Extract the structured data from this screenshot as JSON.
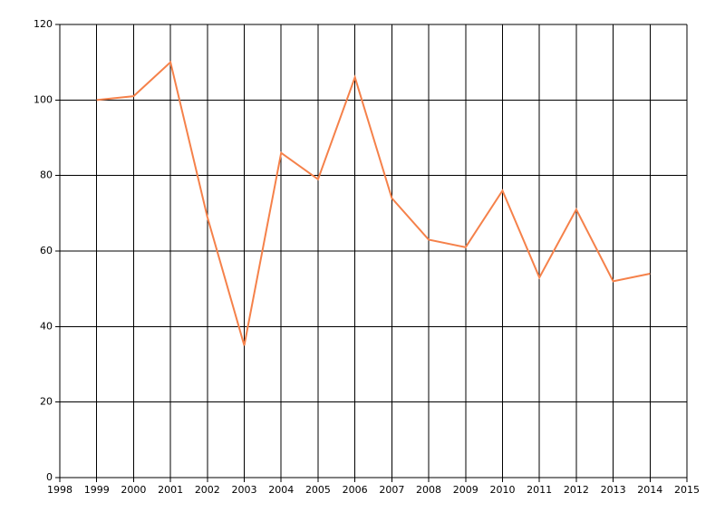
{
  "chart_data": {
    "type": "line",
    "x": [
      1999,
      2000,
      2001,
      2002,
      2003,
      2004,
      2005,
      2006,
      2007,
      2008,
      2009,
      2010,
      2011,
      2012,
      2013,
      2014
    ],
    "series": [
      {
        "color": "#f5814a",
        "values": [
          100,
          101,
          110,
          69,
          35,
          86,
          79,
          106,
          74,
          63,
          61,
          76,
          53,
          71,
          52,
          54
        ]
      }
    ],
    "xlim": [
      1998,
      2015
    ],
    "xticks": [
      1998,
      1999,
      2000,
      2001,
      2002,
      2003,
      2004,
      2005,
      2006,
      2007,
      2008,
      2009,
      2010,
      2011,
      2012,
      2013,
      2014,
      2015
    ],
    "ylim": [
      0,
      120
    ],
    "yticks": [
      0,
      20,
      40,
      60,
      80,
      100,
      120
    ],
    "grid": true
  }
}
